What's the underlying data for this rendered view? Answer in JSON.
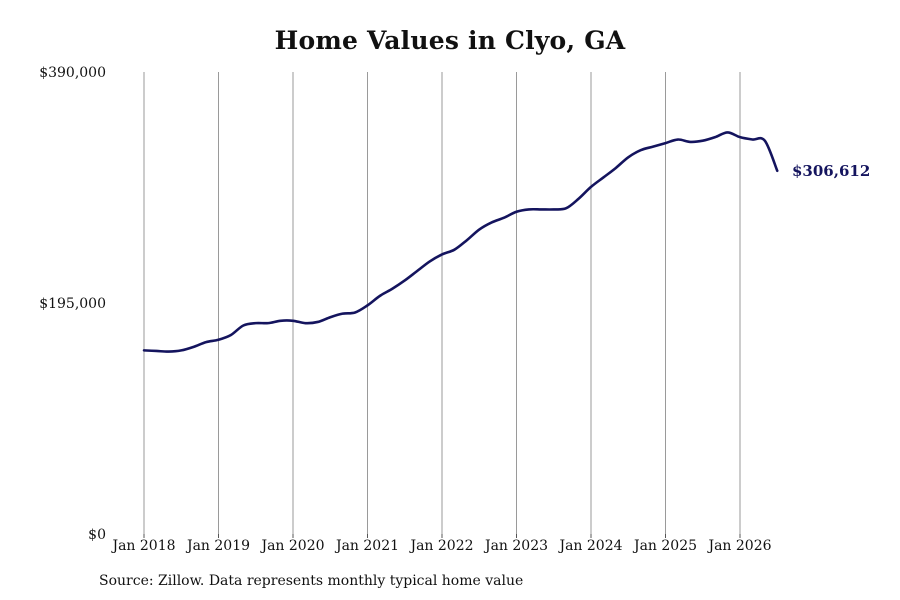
{
  "chart_data": {
    "type": "line",
    "title": "Home Values in Clyo, GA",
    "xlabel": "",
    "ylabel": "",
    "ylim": [
      0,
      390000
    ],
    "y_ticks": [
      "$0",
      "$195,000",
      "$390,000"
    ],
    "y_tick_values": [
      0,
      195000,
      390000
    ],
    "x_tick_labels": [
      "Jan 2018",
      "Jan 2019",
      "Jan 2020",
      "Jan 2021",
      "Jan 2022",
      "Jan 2023",
      "Jan 2024",
      "Jan 2025",
      "Jan 2026"
    ],
    "x_tick_years": [
      2018,
      2019,
      2020,
      2021,
      2022,
      2023,
      2024,
      2025,
      2026
    ],
    "grid": "vertical",
    "line_color": "#14145e",
    "end_label": "$306,612",
    "series": [
      {
        "x": [
          "2018-01",
          "2018-03",
          "2018-05",
          "2018-07",
          "2018-09",
          "2018-11",
          "2019-01",
          "2019-03",
          "2019-05",
          "2019-07",
          "2019-09",
          "2019-11",
          "2020-01",
          "2020-03",
          "2020-05",
          "2020-07",
          "2020-09",
          "2020-11",
          "2021-01",
          "2021-03",
          "2021-05",
          "2021-07",
          "2021-09",
          "2021-11",
          "2022-01",
          "2022-03",
          "2022-05",
          "2022-07",
          "2022-09",
          "2022-11",
          "2023-01",
          "2023-03",
          "2023-05",
          "2023-07",
          "2023-09",
          "2023-11",
          "2024-01",
          "2024-03",
          "2024-05",
          "2024-07",
          "2024-09",
          "2024-11",
          "2025-01",
          "2025-03",
          "2025-05",
          "2025-07",
          "2025-09",
          "2025-11",
          "2026-01",
          "2026-03",
          "2026-05",
          "2026-07"
        ],
        "values": [
          155000,
          154500,
          154000,
          155000,
          158000,
          162000,
          164000,
          168000,
          176000,
          178000,
          178000,
          180000,
          180000,
          178000,
          179000,
          183000,
          186000,
          187000,
          193000,
          201000,
          207000,
          214000,
          222000,
          230000,
          236000,
          240000,
          248000,
          257000,
          263000,
          267000,
          272000,
          274000,
          274000,
          274000,
          275000,
          283000,
          293000,
          301000,
          309000,
          318000,
          324000,
          327000,
          330000,
          333000,
          331000,
          332000,
          335000,
          339000,
          335000,
          333000,
          332000,
          306612
        ]
      }
    ]
  },
  "source": "Source: Zillow. Data represents monthly typical home value"
}
